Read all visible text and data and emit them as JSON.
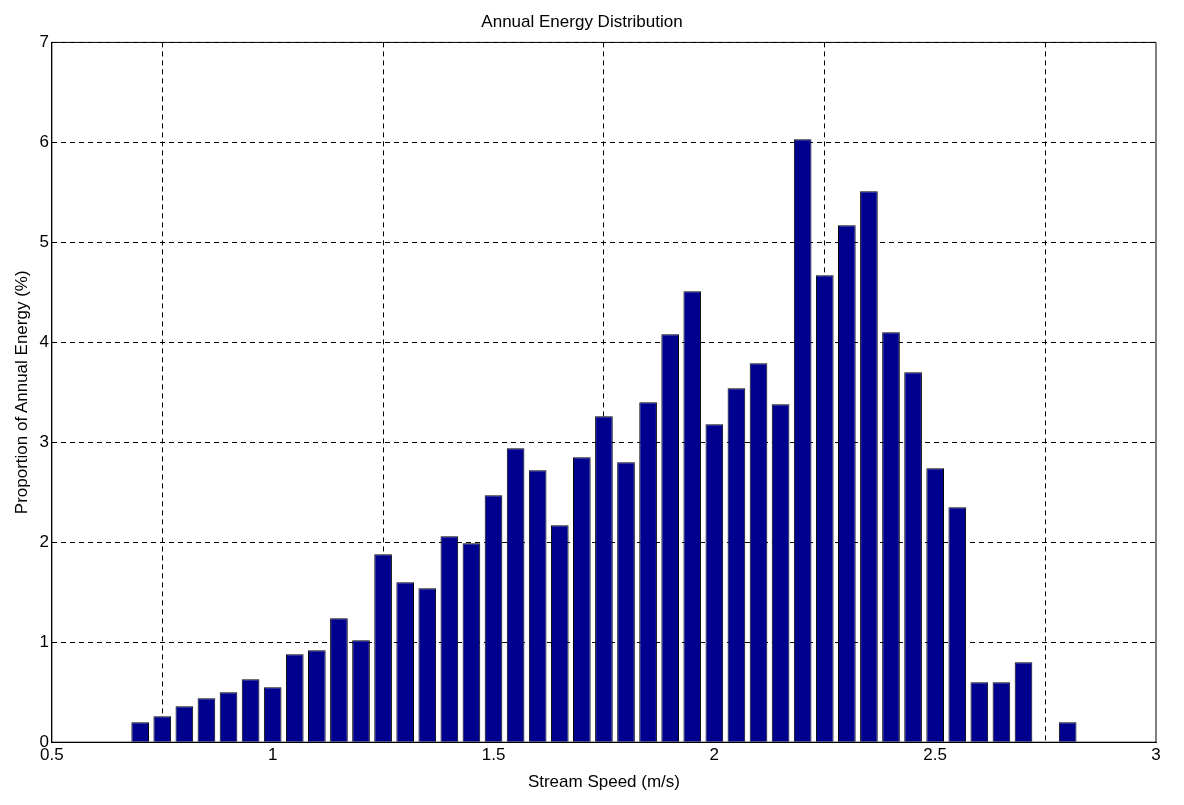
{
  "chart_data": {
    "type": "bar",
    "title": "Annual Energy Distribution",
    "xlabel": "Stream Speed (m/s)",
    "ylabel": "Proportion of Annual Energy (%)",
    "x": [
      0.7,
      0.75,
      0.8,
      0.85,
      0.9,
      0.95,
      1.0,
      1.05,
      1.1,
      1.15,
      1.2,
      1.25,
      1.3,
      1.35,
      1.4,
      1.45,
      1.5,
      1.55,
      1.6,
      1.65,
      1.7,
      1.75,
      1.8,
      1.85,
      1.9,
      1.95,
      2.0,
      2.05,
      2.1,
      2.15,
      2.2,
      2.25,
      2.3,
      2.35,
      2.4,
      2.45,
      2.5,
      2.55,
      2.6,
      2.65,
      2.7,
      2.75,
      2.8
    ],
    "series": [
      {
        "color": "#00008f",
        "values": [
          0.2,
          0.26,
          0.36,
          0.44,
          0.5,
          0.63,
          0.55,
          0.88,
          0.92,
          1.24,
          1.02,
          1.88,
          1.6,
          1.54,
          2.06,
          1.99,
          2.47,
          2.94,
          2.72,
          2.17,
          2.85,
          3.26,
          2.8,
          3.4,
          4.08,
          4.51,
          3.18,
          3.54,
          3.79,
          3.38,
          6.03,
          4.67,
          5.17,
          5.51,
          4.1,
          3.7,
          2.74,
          2.35,
          0.6,
          0.6,
          0.8,
          0,
          0.2
        ]
      }
    ],
    "xlim": [
      0.5,
      3
    ],
    "xticks": [
      0.5,
      1,
      1.5,
      2,
      2.5,
      3
    ],
    "ylim": [
      0,
      7
    ],
    "yticks": [
      0,
      1,
      2,
      3,
      4,
      5,
      6,
      7
    ],
    "grid": true,
    "legend": false
  }
}
